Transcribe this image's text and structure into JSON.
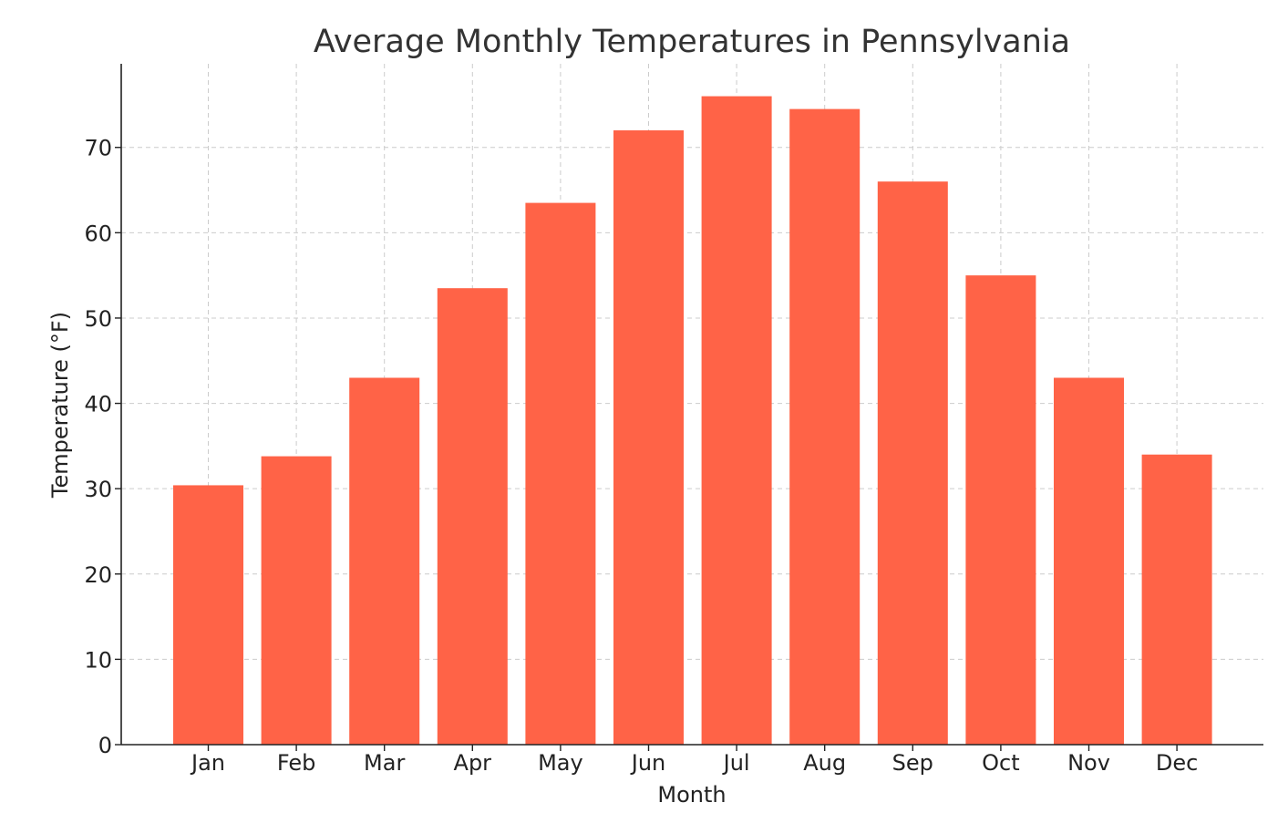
{
  "chart_data": {
    "type": "bar",
    "title": "Average Monthly Temperatures in Pennsylvania",
    "xlabel": "Month",
    "ylabel": "Temperature (°F)",
    "categories": [
      "Jan",
      "Feb",
      "Mar",
      "Apr",
      "May",
      "Jun",
      "Jul",
      "Aug",
      "Sep",
      "Oct",
      "Nov",
      "Dec"
    ],
    "values": [
      30.4,
      33.8,
      43.0,
      53.5,
      63.5,
      72.0,
      76.0,
      74.5,
      66.0,
      55.0,
      43.0,
      34.0
    ],
    "ylim": [
      0,
      79.8
    ],
    "yticks": [
      0,
      10,
      20,
      30,
      40,
      50,
      60,
      70
    ],
    "bar_color": "#ff6347",
    "grid": true
  }
}
